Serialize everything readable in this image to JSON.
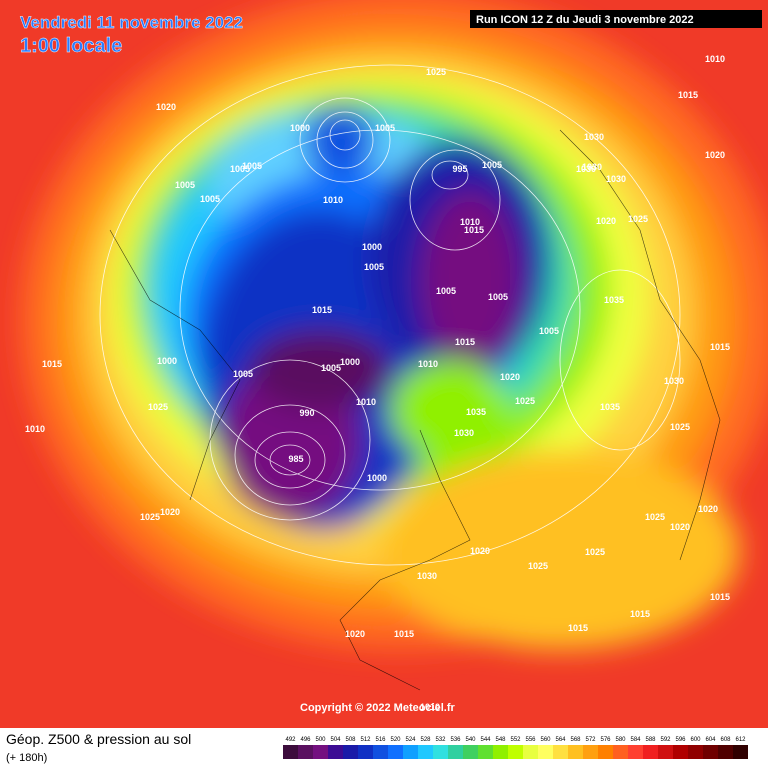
{
  "header": {
    "date": "Vendredi 11 novembre 2022",
    "time": "1:00 locale",
    "run": "Run ICON 12 Z du Jeudi 3 novembre 2022"
  },
  "map": {
    "copyright": "Copyright © 2022 Meteociel.fr",
    "pressure_labels": [
      1010,
      1015,
      1020,
      1025,
      1020,
      1005,
      1000,
      1005,
      1005,
      1005,
      1005,
      1000,
      995,
      1005,
      1030,
      1030,
      1030,
      1020,
      1025,
      1010,
      1010,
      1015,
      1000,
      1005,
      1005,
      1005,
      1005,
      1015,
      1000,
      1005,
      1005,
      1010,
      1015,
      1020,
      1025,
      990,
      985,
      1000,
      1010,
      1030,
      1035,
      1035,
      1030,
      1030,
      1025,
      1020,
      1025,
      1020,
      1025,
      1030,
      1025,
      1020,
      1015,
      1015,
      1020,
      1015,
      1010,
      1015,
      1025,
      1020,
      1010,
      1015,
      1025,
      1015,
      1035
    ]
  },
  "legend": {
    "title": "Géop. Z500 & pression au sol",
    "subtitle": "(+ 180h)",
    "values": [
      492,
      496,
      500,
      504,
      508,
      512,
      516,
      520,
      524,
      528,
      532,
      536,
      540,
      544,
      548,
      552,
      556,
      560,
      564,
      568,
      572,
      576,
      580,
      584,
      588,
      592,
      596,
      600,
      604,
      608,
      612
    ],
    "colors": [
      "#3c0c3c",
      "#5a1060",
      "#741080",
      "#3c0c94",
      "#1a1aa8",
      "#1030c4",
      "#1050e0",
      "#1070ff",
      "#10a0ff",
      "#20c8ff",
      "#30e0e0",
      "#30d0a0",
      "#40d060",
      "#60e030",
      "#90f000",
      "#c0ff00",
      "#e8ff40",
      "#ffff60",
      "#ffe040",
      "#ffc020",
      "#ffa010",
      "#ff8000",
      "#ff6020",
      "#ff4030",
      "#f02020",
      "#d01010",
      "#b00000",
      "#900000",
      "#700000",
      "#500000",
      "#300000"
    ]
  }
}
